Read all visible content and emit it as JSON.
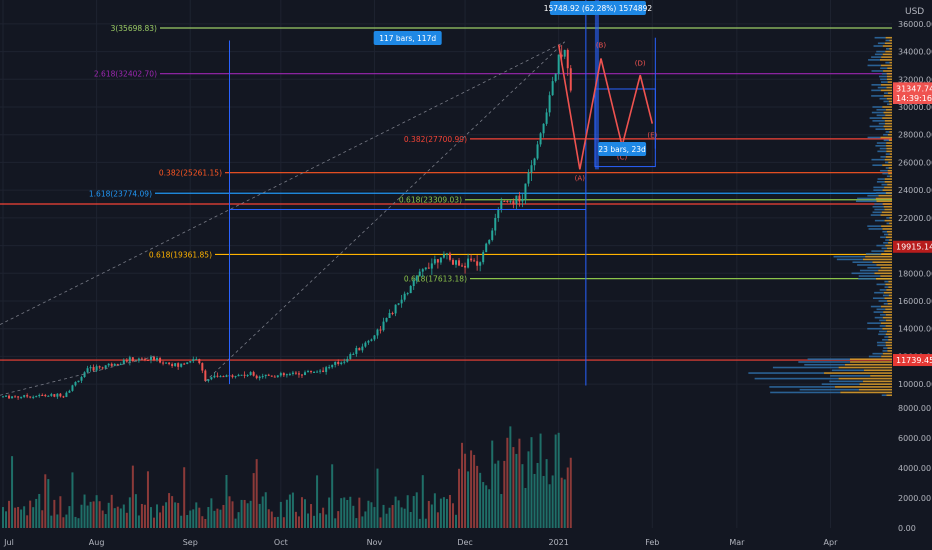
{
  "currency": "USD",
  "chart_data": {
    "type": "candlestick",
    "instrument_unit": "USD",
    "ylim": [
      9000,
      37000
    ],
    "volume_ylim": [
      0,
      8000
    ],
    "grid": true,
    "x_labels": [
      "Jul",
      "Aug",
      "Sep",
      "Oct",
      "Nov",
      "Dec",
      "2021",
      "Feb",
      "Mar",
      "Apr"
    ],
    "price_ticks": [
      "36000.00",
      "34000.00",
      "32000.00",
      "30000.00",
      "28000.00",
      "26000.00",
      "24000.00",
      "22000.00",
      "18000.00",
      "16000.00",
      "14000.00",
      "12000.00",
      "10000.00"
    ],
    "volume_ticks": [
      "8000.00",
      "6000.00",
      "4000.00",
      "2000.00",
      "0.00"
    ],
    "price_tags": [
      {
        "value": 31347.74,
        "label": "31347.74",
        "color": "#ef5350"
      },
      {
        "value": 30650,
        "label": "14:39:16",
        "color": "#ef5350"
      },
      {
        "value": 19915.14,
        "label": "19915.14",
        "color": "#b71c1c"
      },
      {
        "value": 11739.45,
        "label": "11739.45",
        "color": "#e53935"
      }
    ],
    "horizontal_levels": [
      {
        "value": 35698.83,
        "label": "3(35698.83)",
        "color": "#9ccc65"
      },
      {
        "value": 32402.7,
        "label": "2.618(32402.70)",
        "color": "#9c27b0"
      },
      {
        "value": 27700.99,
        "label": "0.382(27700.99)",
        "color": "#f44336"
      },
      {
        "value": 25261.15,
        "label": "0.382(25261.15)",
        "color": "#ff5722"
      },
      {
        "value": 23774.09,
        "label": "1.618(23774.09)",
        "color": "#2196f3"
      },
      {
        "value": 23309.03,
        "label": "0.618(23309.03)",
        "color": "#8bc34a"
      },
      {
        "value": 23000,
        "label": "",
        "color": "#f44336"
      },
      {
        "value": 19361.85,
        "label": "0.618(19361.85)",
        "color": "#ffb300"
      },
      {
        "value": 17613.18,
        "label": "0.618(17613.18)",
        "color": "#8bc34a"
      },
      {
        "value": 11739.45,
        "label": "",
        "color": "#f44336"
      }
    ],
    "annotations": {
      "range_top": "15748.92 (62.28%) 1574892",
      "bars_left": "117 bars, 117d",
      "bars_right": "23 bars, 23d",
      "waves": [
        "(A)",
        "(B)",
        "(C)",
        "(D)",
        "(E)"
      ]
    },
    "wave_path": [
      {
        "day": 184,
        "price": 34500
      },
      {
        "day": 191,
        "price": 25500
      },
      {
        "day": 198,
        "price": 33500
      },
      {
        "day": 205,
        "price": 27200
      },
      {
        "day": 211,
        "price": 32300
      },
      {
        "day": 215,
        "price": 28800
      }
    ],
    "price_series": {
      "start": "2020-07-01",
      "end": "2021-01-08",
      "anchors": [
        {
          "day": 0,
          "price": 9100
        },
        {
          "day": 20,
          "price": 9200
        },
        {
          "day": 28,
          "price": 11000
        },
        {
          "day": 40,
          "price": 11700
        },
        {
          "day": 50,
          "price": 11800
        },
        {
          "day": 58,
          "price": 11300
        },
        {
          "day": 64,
          "price": 11900
        },
        {
          "day": 67,
          "price": 10400
        },
        {
          "day": 80,
          "price": 10700
        },
        {
          "day": 92,
          "price": 10600
        },
        {
          "day": 105,
          "price": 11000
        },
        {
          "day": 112,
          "price": 11600
        },
        {
          "day": 122,
          "price": 13300
        },
        {
          "day": 130,
          "price": 15500
        },
        {
          "day": 140,
          "price": 18500
        },
        {
          "day": 145,
          "price": 19300
        },
        {
          "day": 150,
          "price": 18700
        },
        {
          "day": 158,
          "price": 18800
        },
        {
          "day": 165,
          "price": 23000
        },
        {
          "day": 172,
          "price": 23500
        },
        {
          "day": 178,
          "price": 28000
        },
        {
          "day": 184,
          "price": 33500
        },
        {
          "day": 186,
          "price": 34700
        },
        {
          "day": 188,
          "price": 31347
        }
      ]
    },
    "volume_profile_side": "right"
  }
}
